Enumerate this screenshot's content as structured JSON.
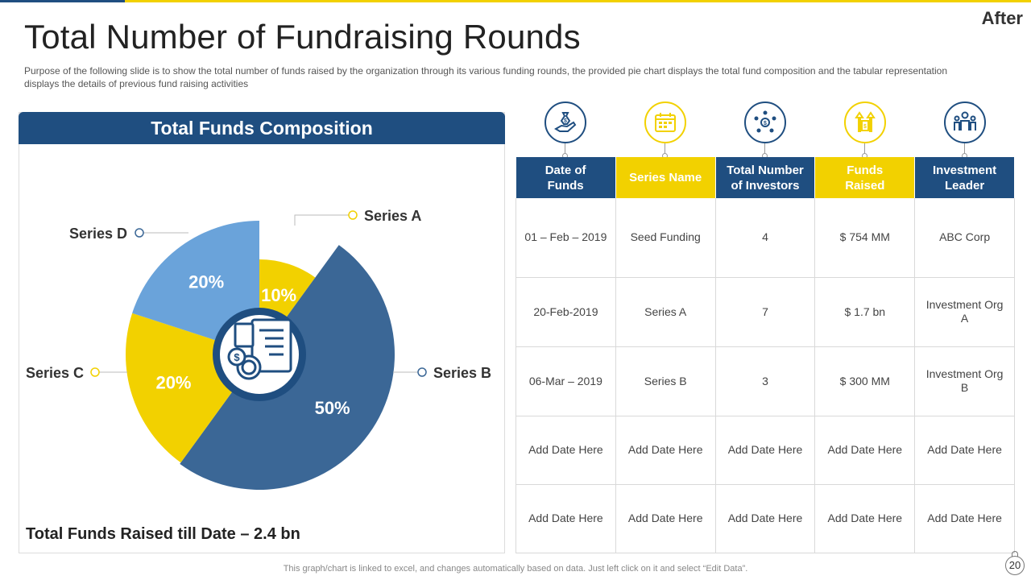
{
  "slide": {
    "title": "Total Number of Fundraising Rounds",
    "corner_label": "After",
    "subtitle": "Purpose of the following slide is to show the total number of funds raised by the organization through its various funding rounds, the provided pie chart displays the total fund composition and the tabular representation displays the details of previous fund raising activities",
    "footer": "This graph/chart is linked to excel, and changes automatically based on data. Just left click on it and select “Edit Data”.",
    "page_number": "20"
  },
  "panel": {
    "header": "Total Funds Composition",
    "total_text": "Total Funds Raised till Date – 2.4 bn"
  },
  "chart_data": {
    "type": "pie",
    "variant": "donut",
    "title": "Total Funds Composition",
    "categories": [
      "Series A",
      "Series B",
      "Series C",
      "Series D"
    ],
    "values": [
      10,
      50,
      20,
      20
    ],
    "value_labels": [
      "10%",
      "50%",
      "20%",
      "20%"
    ],
    "colors": [
      "#f2d100",
      "#3b6796",
      "#f2d100",
      "#6aa3da"
    ]
  },
  "table": {
    "headers": [
      {
        "label_line1": "Date of",
        "label_line2": "Funds",
        "style": "blue"
      },
      {
        "label_line1": "Series Name",
        "label_line2": "",
        "style": "yellow"
      },
      {
        "label_line1": "Total Number",
        "label_line2": "of Investors",
        "style": "blue"
      },
      {
        "label_line1": "Funds",
        "label_line2": "Raised",
        "style": "yellow"
      },
      {
        "label_line1": "Investment",
        "label_line2": "Leader",
        "style": "blue"
      }
    ],
    "icons": [
      "money-hand-icon",
      "calendar-icon",
      "investors-network-icon",
      "funds-growth-icon",
      "leader-group-icon"
    ],
    "rows": [
      [
        "01 – Feb – 2019",
        "Seed Funding",
        "4",
        "$ 754 MM",
        "ABC Corp"
      ],
      [
        "20-Feb-2019",
        "Series A",
        "7",
        "$ 1.7 bn",
        "Investment Org A"
      ],
      [
        "06-Mar – 2019",
        "Series B",
        "3",
        "$ 300 MM",
        "Investment Org B"
      ],
      [
        "Add Date Here",
        "Add Date Here",
        "Add Date Here",
        "Add Date Here",
        "Add Date Here"
      ],
      [
        "Add Date Here",
        "Add Date Here",
        "Add Date Here",
        "Add Date Here",
        "Add Date Here"
      ]
    ]
  },
  "colors": {
    "brand_blue": "#1f4e80",
    "brand_yellow": "#f2d100",
    "slice_dark_blue": "#3b6796",
    "slice_light_blue": "#6aa3da"
  }
}
